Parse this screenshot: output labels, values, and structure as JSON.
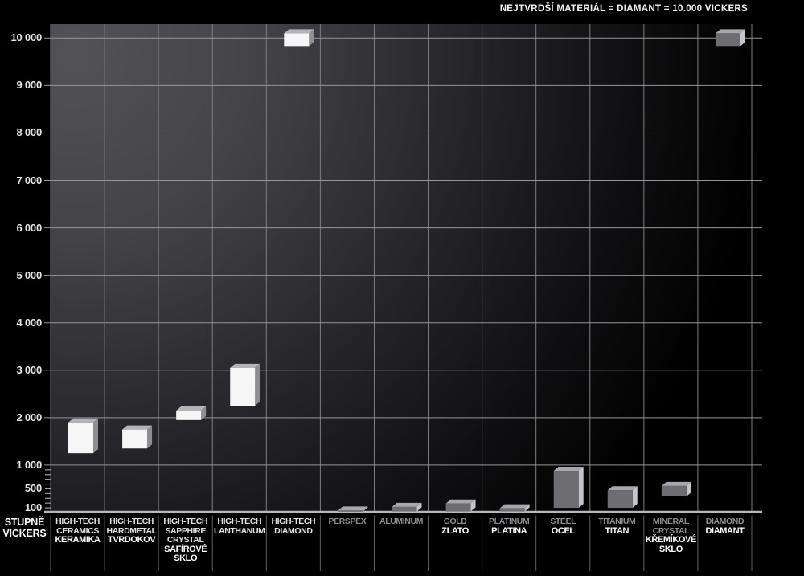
{
  "title": "NEJTVRDŠÍ MATERIÁL = DIAMANT = 10.000 VICKERS",
  "y_axis": {
    "title_line1": "STUPNĚ",
    "title_line2": "VICKERS"
  },
  "chart_data": {
    "type": "bar",
    "subtype": "floating-range-bars-3d",
    "title": "NEJTVRDŠÍ MATERIÁL = DIAMANT = 10.000 VICKERS",
    "ylabel": "STUPNĚ VICKERS",
    "ylim": [
      0,
      10300
    ],
    "grid": true,
    "legend_position": "none",
    "y_major_ticks": [
      {
        "label": "10 000",
        "value": 10000
      },
      {
        "label": "9 000",
        "value": 9000
      },
      {
        "label": "8 000",
        "value": 8000
      },
      {
        "label": "7 000",
        "value": 7000
      },
      {
        "label": "6 000",
        "value": 6000
      },
      {
        "label": "5 000",
        "value": 5000
      },
      {
        "label": "4 000",
        "value": 4000
      },
      {
        "label": "3 000",
        "value": 3000
      },
      {
        "label": "2 000",
        "value": 2000
      },
      {
        "label": "1 000",
        "value": 1000
      },
      {
        "label": "500",
        "value": 500
      },
      {
        "label": "100",
        "value": 100
      }
    ],
    "y_minor_tick_values": [
      100,
      200,
      300,
      400,
      500,
      600,
      700,
      800,
      900
    ],
    "categories": [
      {
        "id": "high-tech-ceramics",
        "name_lines": [
          "HIGH-TECH",
          "CERAMICS"
        ],
        "czech_lines": [
          "KERAMIKA"
        ],
        "vickers_range": [
          1250,
          1900
        ],
        "bar_style": "white"
      },
      {
        "id": "high-tech-hardmetal",
        "name_lines": [
          "HIGH-TECH",
          "HARDMETAL"
        ],
        "czech_lines": [
          "TVRDOKOV"
        ],
        "vickers_range": [
          1350,
          1750
        ],
        "bar_style": "white"
      },
      {
        "id": "high-tech-sapphire",
        "name_lines": [
          "HIGH-TECH",
          "SAPPHIRE",
          "CRYSTAL"
        ],
        "czech_lines": [
          "SAFÍROVÉ",
          "SKLO"
        ],
        "vickers_range": [
          1950,
          2150
        ],
        "bar_style": "white"
      },
      {
        "id": "high-tech-lanthanum",
        "name_lines": [
          "HIGH-TECH",
          "LANTHANUM"
        ],
        "czech_lines": [],
        "vickers_range": [
          2250,
          3050
        ],
        "bar_style": "white"
      },
      {
        "id": "high-tech-diamond",
        "name_lines": [
          "HIGH-TECH",
          "DIAMOND"
        ],
        "czech_lines": [],
        "vickers_range": [
          9830,
          10100
        ],
        "bar_style": "white"
      },
      {
        "id": "perspex",
        "name_lines": [
          "PERSPEX"
        ],
        "czech_lines": [],
        "vickers_range": [
          0,
          45
        ],
        "bar_style": "gray"
      },
      {
        "id": "aluminum",
        "name_lines": [
          "ALUMINUM"
        ],
        "czech_lines": [],
        "vickers_range": [
          0,
          120
        ],
        "bar_style": "gray"
      },
      {
        "id": "gold",
        "name_lines": [
          "GOLD"
        ],
        "czech_lines": [
          "ZLATO"
        ],
        "vickers_range": [
          0,
          190
        ],
        "bar_style": "gray"
      },
      {
        "id": "platinum",
        "name_lines": [
          "PLATINUM"
        ],
        "czech_lines": [
          "PLATINA"
        ],
        "vickers_range": [
          0,
          90
        ],
        "bar_style": "gray"
      },
      {
        "id": "steel",
        "name_lines": [
          "STEEL"
        ],
        "czech_lines": [
          "OCEL"
        ],
        "vickers_range": [
          100,
          880
        ],
        "bar_style": "gray"
      },
      {
        "id": "titanium",
        "name_lines": [
          "TITANIUM"
        ],
        "czech_lines": [
          "TITAN"
        ],
        "vickers_range": [
          100,
          470
        ],
        "bar_style": "gray"
      },
      {
        "id": "mineral-crystal",
        "name_lines": [
          "MINERAL",
          "CRYSTAL"
        ],
        "czech_lines": [
          "KŘEMÍKOVÉ",
          "SKLO"
        ],
        "vickers_range": [
          340,
          560
        ],
        "bar_style": "gray"
      },
      {
        "id": "diamond",
        "name_lines": [
          "DIAMOND"
        ],
        "czech_lines": [
          "DIAMANT"
        ],
        "vickers_range": [
          9830,
          10100
        ],
        "bar_style": "gray"
      }
    ],
    "bar_colors": {
      "white": {
        "front": "#f6f6f6",
        "top": "#b4b4b8",
        "side": "#8e8e92"
      },
      "gray": {
        "front": "#6e6e72",
        "top": "#a8a8ac",
        "side": "#c6c6ca"
      }
    },
    "name_text_colors": {
      "white": "#e2e2e4",
      "gray": "#8f8f93"
    },
    "czech_text_color": "#ffffff",
    "grid_colors": {
      "horizontal": "#96969a",
      "vertical": "#7e7e82",
      "baseline": "#b8b8bc",
      "separator": "#606064",
      "tick": "#a0a0a4"
    },
    "background": "#000000"
  }
}
